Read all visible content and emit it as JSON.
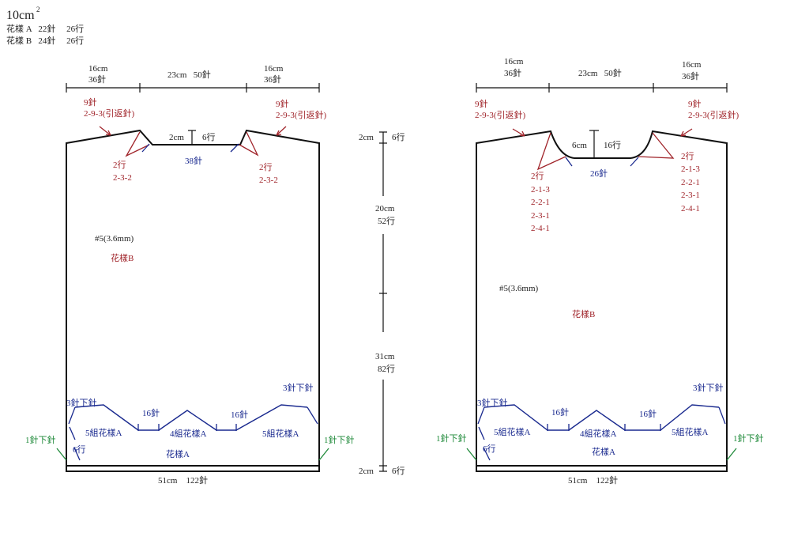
{
  "gauge": {
    "title": "10cm",
    "title_sup": "2",
    "line_a": "花樣 A   22針     26行",
    "line_b": "花樣 B   24針     26行"
  },
  "front": {
    "top_left_cm": "16cm",
    "top_left_st": "36針",
    "top_mid": "23cm   50針",
    "top_right_cm": "16cm",
    "top_right_st": "36針",
    "shoulder_left_1": "9針",
    "shoulder_left_2": "2-9-3(引返針)",
    "shoulder_right_1": "9針",
    "shoulder_right_2": "2-9-3(引返針)",
    "neck_depth_cm": "2cm",
    "neck_depth_row": "6行",
    "neck_st": "38針",
    "dec_left_1": "2行",
    "dec_left_2": "2-3-2",
    "dec_right_1": "2行",
    "dec_right_2": "2-3-2",
    "needle": "#5(3.6mm)",
    "pattern_b": "花樣B",
    "bind_left": "3針下針",
    "bind_right": "3針下針",
    "st16_a": "16針",
    "st16_b": "16針",
    "group_left": "5組花樣A",
    "group_mid": "4組花樣A",
    "group_right": "5組花樣A",
    "rows6": "6行",
    "pattern_a": "花樣A",
    "edge_left": "1針下針",
    "edge_right": "1針下針",
    "bottom": "51cm    122針"
  },
  "middle": {
    "top_cm": "2cm",
    "top_row": "6行",
    "upper_cm": "20cm",
    "upper_row": "52行",
    "lower_cm": "31cm",
    "lower_row": "82行",
    "bottom_cm": "2cm",
    "bottom_row": "6行"
  },
  "back": {
    "top_left_cm": "16cm",
    "top_left_st": "36針",
    "top_mid": "23cm   50針",
    "top_right_cm": "16cm",
    "top_right_st": "36針",
    "shoulder_left_1": "9針",
    "shoulder_left_2": "2-9-3(引返針)",
    "shoulder_right_1": "9針",
    "shoulder_right_2": "2-9-3(引返針)",
    "neck_cm": "6cm",
    "neck_row": "16行",
    "neck_st": "26針",
    "dec_left": [
      "2行",
      "2-1-3",
      "2-2-1",
      "2-3-1",
      "2-4-1"
    ],
    "dec_right": [
      "2行",
      "2-1-3",
      "2-2-1",
      "2-3-1",
      "2-4-1"
    ],
    "needle": "#5(3.6mm)",
    "pattern_b": "花樣B",
    "bind_left": "3針下針",
    "bind_right": "3針下針",
    "st16_a": "16針",
    "st16_b": "16針",
    "group_left": "5組花樣A",
    "group_mid": "4組花樣A",
    "group_right": "5組花樣A",
    "rows6": "6行",
    "pattern_a": "花樣A",
    "edge_left": "1針下針",
    "edge_right": "1針下針",
    "bottom": "51cm    122針"
  },
  "colors": {
    "outline": "#111111",
    "red": "#a0242a",
    "blue": "#1a2a8f",
    "green": "#1f8a3a"
  }
}
